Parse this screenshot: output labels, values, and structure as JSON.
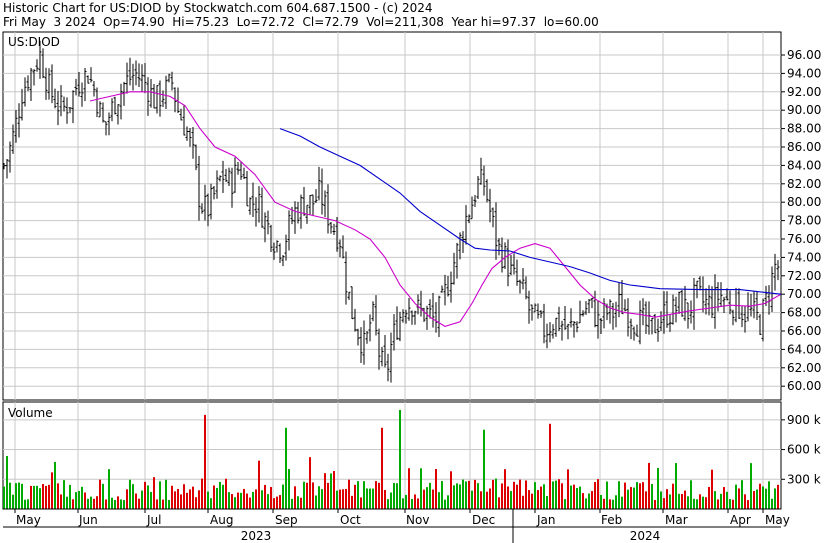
{
  "header": {
    "line1": "Historic Chart for US:DIOD by Stockwatch.com 604.687.1500 - (c) 2024",
    "line2": "Fri May  3 2024  Op=74.90  Hi=75.23  Lo=72.72  Cl=72.79  Vol=211,308  Year hi=97.37  lo=60.00"
  },
  "chart_data": {
    "type": "line",
    "symbol": "US:DIOD",
    "price_axis": {
      "ticks": [
        "96.00",
        "94.00",
        "92.00",
        "90.00",
        "88.00",
        "86.00",
        "84.00",
        "82.00",
        "80.00",
        "78.00",
        "76.00",
        "74.00",
        "72.00",
        "70.00",
        "68.00",
        "66.00",
        "64.00",
        "62.00",
        "60.00"
      ],
      "ylim": [
        58.5,
        98.5
      ]
    },
    "volume_panel": {
      "label": "Volume",
      "ticks": [
        "900 k",
        "600 k",
        "300 k"
      ],
      "ylim": [
        0,
        1080
      ]
    },
    "x_months": [
      "May",
      "Jun",
      "Jul",
      "Aug",
      "Sep",
      "Oct",
      "Nov",
      "Dec",
      "Jan",
      "Feb",
      "Mar",
      "Apr",
      "May"
    ],
    "x_years": [
      "2023",
      "2024"
    ],
    "price_anchors": {
      "x": [
        0,
        8,
        15,
        22,
        30,
        40,
        50,
        62,
        70,
        78,
        88,
        95,
        104,
        115,
        125,
        135,
        145,
        155,
        165,
        172,
        178,
        186,
        193,
        200,
        207,
        215,
        222,
        230,
        240,
        250,
        258,
        265,
        274,
        282,
        288,
        295,
        305,
        313,
        320,
        330,
        340,
        345,
        352,
        358,
        365,
        372,
        380,
        386,
        392,
        398,
        405,
        412,
        420,
        428,
        435,
        442,
        450,
        458,
        465,
        472,
        478,
        484,
        490,
        498,
        505,
        512,
        518,
        524,
        530,
        537,
        545,
        552,
        560,
        568,
        575,
        582,
        590,
        598,
        606,
        614,
        620,
        628,
        635,
        642,
        650,
        658,
        665,
        672,
        680,
        688,
        696,
        704,
        712,
        720,
        728,
        736,
        744,
        752,
        760,
        768,
        775,
        781
      ],
      "y": [
        83,
        85,
        88,
        92,
        94,
        96,
        92,
        90,
        91,
        93,
        94,
        92,
        88,
        91,
        93,
        94,
        93,
        91,
        92,
        93,
        90,
        88,
        85,
        80,
        79,
        81,
        83,
        82,
        84,
        80,
        80,
        78,
        76,
        75,
        77,
        79,
        80,
        80,
        81,
        78,
        76,
        72,
        68,
        66,
        64,
        68,
        63,
        61,
        65,
        67,
        69,
        69,
        68,
        68,
        67,
        69,
        72,
        75,
        78,
        80,
        82,
        82,
        79,
        75,
        74,
        72,
        71,
        70,
        68,
        67,
        66,
        67,
        67,
        66,
        67,
        68,
        69,
        67,
        68,
        68,
        69,
        68,
        67,
        67,
        66,
        67,
        68,
        68,
        69,
        68,
        70,
        69,
        69,
        70,
        69,
        69,
        68,
        68,
        67,
        70,
        73,
        73
      ]
    },
    "series": [
      {
        "name": "Daily price bars (high/low, open/close ticks)",
        "color": "#000000"
      },
      {
        "name": "Short moving average",
        "color": "#cc00cc",
        "x": [
          90,
          110,
          130,
          150,
          170,
          185,
          200,
          215,
          235,
          255,
          275,
          295,
          315,
          335,
          355,
          370,
          385,
          400,
          415,
          430,
          445,
          460,
          472,
          482,
          492,
          505,
          520,
          535,
          550,
          565,
          580,
          595,
          610,
          625,
          640,
          655,
          670,
          690,
          710,
          730,
          750,
          765,
          781
        ],
        "values": [
          91,
          91.5,
          92,
          92,
          91.5,
          90.5,
          88,
          86,
          85,
          83,
          80,
          79,
          78.5,
          78,
          77,
          76,
          74,
          71,
          69,
          67.5,
          66.5,
          67,
          69,
          71,
          72.8,
          74,
          75,
          75.5,
          75,
          73,
          71,
          69.5,
          68.5,
          68,
          67.8,
          67.5,
          67.8,
          68.2,
          68.5,
          68.8,
          68.7,
          69,
          70
        ]
      },
      {
        "name": "Long moving average",
        "color": "#0000cc",
        "x": [
          280,
          300,
          320,
          340,
          360,
          380,
          400,
          420,
          440,
          460,
          475,
          490,
          510,
          530,
          550,
          570,
          590,
          610,
          630,
          660,
          700,
          740,
          781
        ],
        "values": [
          88,
          87.2,
          86,
          85,
          84,
          82.5,
          81,
          79,
          77.5,
          76,
          75,
          74.8,
          74.7,
          74,
          73.5,
          73,
          72.3,
          71.5,
          71,
          70.6,
          70.5,
          70.5,
          70
        ]
      }
    ],
    "volume": {
      "up_color": "#00aa00",
      "down_color": "#dd0000",
      "notable_bars_k": [
        950,
        1000,
        860,
        820,
        820,
        800
      ]
    }
  }
}
